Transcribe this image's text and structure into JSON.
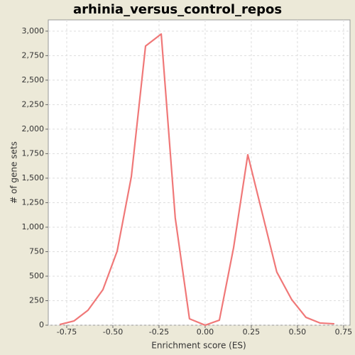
{
  "chart_data": {
    "type": "line",
    "title": "arhinia_versus_control_repos",
    "xlabel": "Enrichment score (ES)",
    "ylabel": "# of gene sets",
    "x": [
      -0.788,
      -0.711,
      -0.635,
      -0.554,
      -0.477,
      -0.4,
      -0.323,
      -0.238,
      -0.162,
      -0.085,
      0,
      0.077,
      0.154,
      0.231,
      0.312,
      0.388,
      0.469,
      0.546,
      0.623,
      0.7
    ],
    "series": [
      {
        "name": "gene sets",
        "color": "#f07878",
        "values": [
          7,
          43,
          152,
          362,
          754,
          1514,
          2848,
          2971,
          1094,
          65,
          0,
          51,
          790,
          1739,
          1123,
          543,
          261,
          80,
          22,
          14
        ]
      }
    ],
    "xlim": [
      -0.85,
      0.785
    ],
    "ylim": [
      0,
      3115
    ],
    "xticks": [
      -0.75,
      {
        "value": -0.5,
        "label": "-0.50"
      },
      -0.25,
      {
        "value": 0,
        "label": "0.00"
      },
      0.25,
      {
        "value": 0.5,
        "label": "0.50"
      },
      0.75
    ],
    "yticks": [
      0,
      250,
      500,
      750,
      {
        "value": 1000,
        "label": "1,000"
      },
      {
        "value": 1250,
        "label": "1,250"
      },
      {
        "value": 1500,
        "label": "1,500"
      },
      {
        "value": 1750,
        "label": "1,750"
      },
      {
        "value": 2000,
        "label": "2,000"
      },
      {
        "value": 2250,
        "label": "2,250"
      },
      {
        "value": 2500,
        "label": "2,500"
      },
      {
        "value": 2750,
        "label": "2,750"
      },
      {
        "value": 3000,
        "label": "3,000"
      }
    ],
    "grid": true
  }
}
